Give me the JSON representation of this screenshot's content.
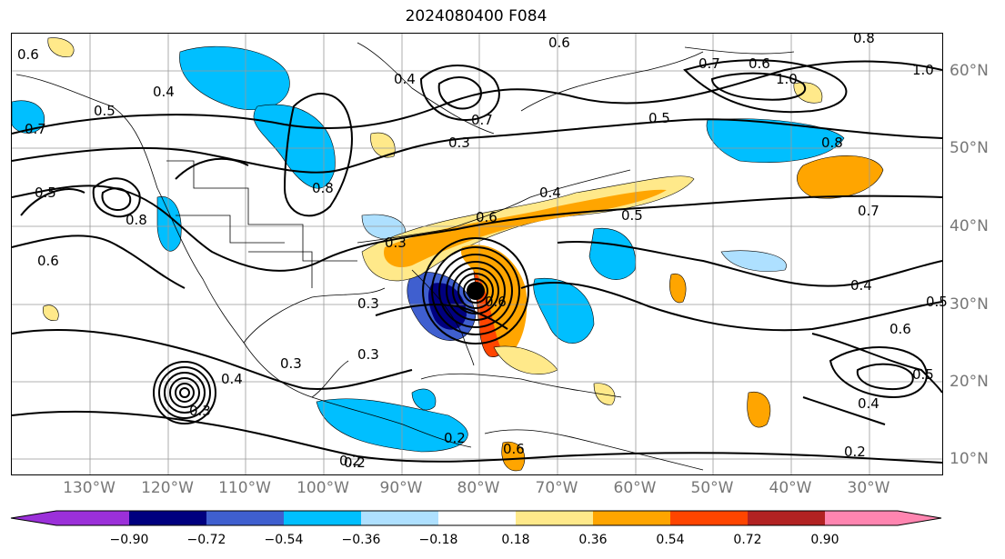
{
  "title": "2024080400 F084",
  "lon_labels": [
    "130°W",
    "120°W",
    "110°W",
    "100°W",
    "90°W",
    "80°W",
    "70°W",
    "60°W",
    "50°W",
    "40°W",
    "30°W"
  ],
  "lat_labels": [
    "60°N",
    "50°N",
    "40°N",
    "30°N",
    "20°N",
    "10°N"
  ],
  "contour_labels": [
    "0.6",
    "0.4",
    "0.7",
    "0.5",
    "0.8",
    "1.0",
    "0.3",
    "0.2",
    "0.6",
    "0.5",
    "0.4",
    "0.3",
    "0.8",
    "0.6",
    "0.7",
    "0.5",
    "0.4",
    "0.3",
    "0.2",
    "0.7",
    "0.6",
    "0.7",
    "0.3",
    "0.4",
    "0.8",
    "1.0",
    "0.5",
    "0.4",
    "0.3",
    "0.2",
    "0.3",
    "0.6",
    "0.5",
    "0.4",
    "0.6",
    "0.2",
    "0.6",
    "0.8",
    "0.5",
    "0.6"
  ],
  "colorbar": {
    "ticks": [
      "−0.90",
      "−0.72",
      "−0.54",
      "−0.36",
      "−0.18",
      "0.18",
      "0.36",
      "0.54",
      "0.72",
      "0.90"
    ],
    "colors": [
      "#9b30d9",
      "#00007f",
      "#3f5fcf",
      "#00bfff",
      "#aee0ff",
      "#ffffff",
      "#ffe98a",
      "#ffa500",
      "#ff4500",
      "#b22222",
      "#ff85b0"
    ]
  }
}
